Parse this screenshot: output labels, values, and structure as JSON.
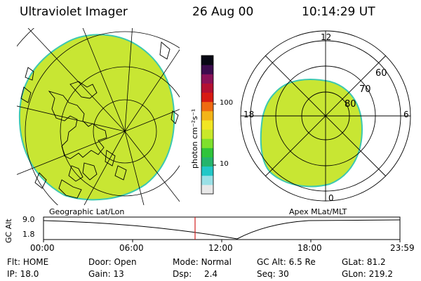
{
  "header": {
    "instrument": "Ultraviolet Imager",
    "date": "26 Aug 00",
    "time": "10:14:29 UT"
  },
  "colorbar": {
    "unit_label": "photon cm⁻²s⁻¹",
    "ticks": [
      "100",
      "10"
    ],
    "colors": [
      "#e8e8e8",
      "#9ae0e6",
      "#22c7c7",
      "#24b46c",
      "#2fc43a",
      "#7ee02c",
      "#c9e82a",
      "#f2e623",
      "#f3b418",
      "#ef6a11",
      "#d71a13",
      "#b41032",
      "#8a1258",
      "#3c0c4e",
      "#070714"
    ],
    "fill_color": "#c8e633",
    "edge_color": "#3cc8b0"
  },
  "geo_panel": {
    "label": "Geographic Lat/Lon"
  },
  "polar_panel": {
    "label": "Apex MLat/MLT",
    "mlt_labels": {
      "top": "12",
      "left": "18",
      "right": "6",
      "bottom": "0"
    },
    "lat_labels": [
      "60",
      "70",
      "80"
    ]
  },
  "altitude_strip": {
    "axis_label": "GC Alt",
    "y_ticks": [
      "9.0",
      "1.8"
    ],
    "x_ticks": [
      "00:00",
      "06:00",
      "12:00",
      "18:00",
      "23:59"
    ],
    "marker_color": "#d22020"
  },
  "status": {
    "row1": [
      {
        "key": "Flt:",
        "value": "HOME"
      },
      {
        "key": "Door:",
        "value": "Open"
      },
      {
        "key": "Mode:",
        "value": "Normal"
      },
      {
        "key": "GC Alt:",
        "value": "6.5 Re"
      },
      {
        "key": "GLat:",
        "value": "81.2"
      }
    ],
    "row2": [
      {
        "key": "IP:",
        "value": "18.0"
      },
      {
        "key": "Gain:",
        "value": "13"
      },
      {
        "key": "Dsp:",
        "value": "2.4"
      },
      {
        "key": "Seq:",
        "value": "30"
      },
      {
        "key": "GLon:",
        "value": "219.2"
      }
    ]
  }
}
